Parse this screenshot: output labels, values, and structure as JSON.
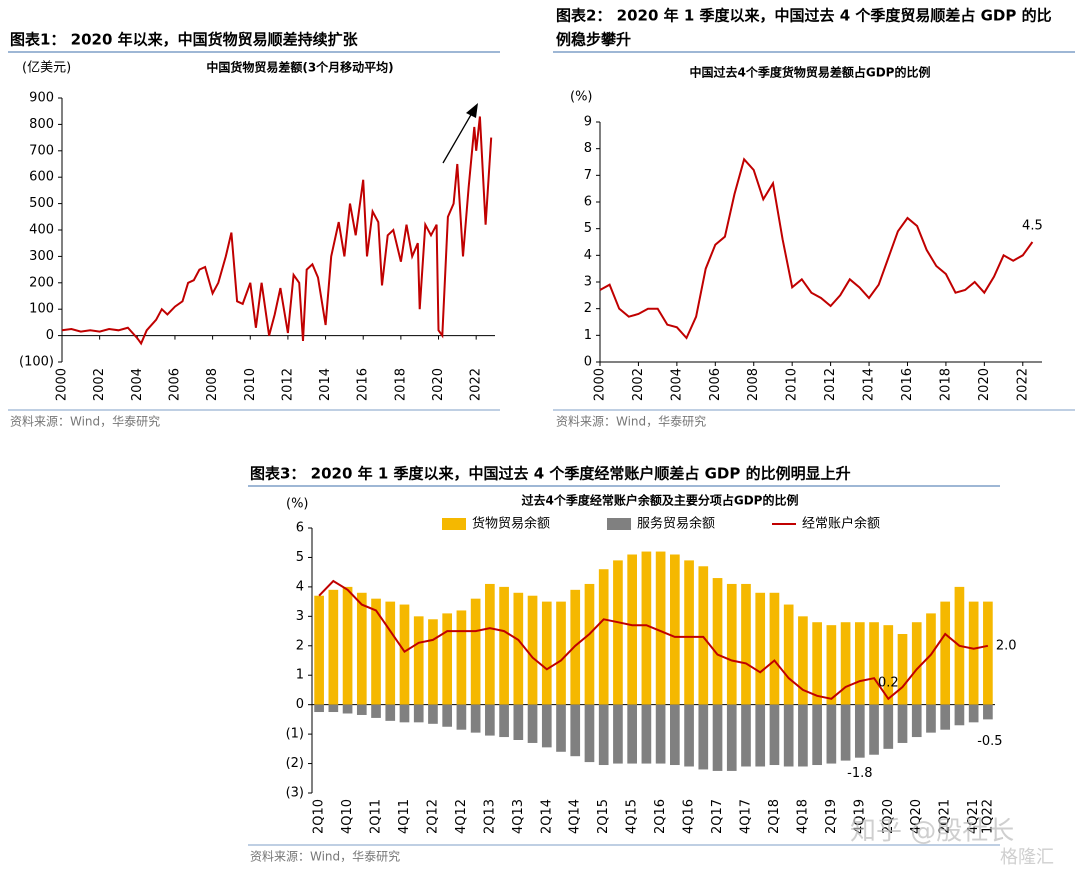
{
  "chart_data": [
    {
      "type": "line",
      "header": [
        "图表1：  2020 年以来，中国货物贸易顺差持续扩张"
      ],
      "title": "中国货物贸易差额(3个月移动平均)",
      "y_label": "(亿美元)",
      "source": "资料来源：Wind，华泰研究",
      "x": [
        2000,
        2000.5,
        2001,
        2001.5,
        2002,
        2002.5,
        2003,
        2003.5,
        2004,
        2004.2,
        2004.5,
        2005,
        2005.3,
        2005.6,
        2006,
        2006.4,
        2006.7,
        2007,
        2007.3,
        2007.6,
        2008,
        2008.3,
        2008.7,
        2009,
        2009.3,
        2009.6,
        2010,
        2010.3,
        2010.6,
        2011,
        2011.3,
        2011.6,
        2012,
        2012.3,
        2012.6,
        2012.8,
        2013,
        2013.3,
        2013.6,
        2014,
        2014.3,
        2014.7,
        2015,
        2015.3,
        2015.6,
        2016,
        2016.2,
        2016.5,
        2016.8,
        2017,
        2017.3,
        2017.6,
        2018,
        2018.3,
        2018.6,
        2018.9,
        2019,
        2019.3,
        2019.6,
        2019.9,
        2020,
        2020.2,
        2020.5,
        2020.8,
        2021,
        2021.3,
        2021.6,
        2021.9,
        2022,
        2022.2,
        2022.5,
        2022.8
      ],
      "series": [
        {
          "name": "中国货物贸易差额",
          "color": "#c00000",
          "values": [
            20,
            25,
            15,
            20,
            15,
            25,
            20,
            30,
            -10,
            -30,
            20,
            60,
            100,
            80,
            110,
            130,
            200,
            210,
            250,
            260,
            160,
            200,
            300,
            390,
            130,
            120,
            200,
            30,
            200,
            0,
            80,
            180,
            10,
            230,
            200,
            -20,
            250,
            270,
            220,
            40,
            300,
            430,
            300,
            500,
            380,
            590,
            300,
            470,
            430,
            190,
            380,
            400,
            280,
            420,
            300,
            350,
            100,
            420,
            380,
            420,
            20,
            0,
            450,
            500,
            650,
            300,
            560,
            790,
            700,
            830,
            420,
            750
          ]
        }
      ],
      "xlim": [
        2000,
        2023
      ],
      "xticks": [
        2000,
        2002,
        2004,
        2006,
        2008,
        2010,
        2012,
        2014,
        2016,
        2018,
        2020,
        2022
      ],
      "ylim": [
        -100,
        900
      ],
      "yticks": [
        {
          "value": -100,
          "label": "(100)"
        },
        0,
        100,
        200,
        300,
        400,
        500,
        600,
        700,
        800,
        900
      ]
    },
    {
      "type": "line",
      "header": [
        "图表2：  2020 年 1 季度以来，中国过去 4 个季度贸易顺差占 GDP 的比",
        "例稳步攀升"
      ],
      "title": "中国过去4个季度货物贸易差额占GDP的比例",
      "y_label": "(%)",
      "source": "资料来源：Wind，华泰研究",
      "x": [
        2000,
        2000.5,
        2001,
        2001.5,
        2002,
        2002.5,
        2003,
        2003.5,
        2004,
        2004.5,
        2005,
        2005.5,
        2006,
        2006.5,
        2007,
        2007.5,
        2008,
        2008.5,
        2009,
        2009.5,
        2010,
        2010.5,
        2011,
        2011.5,
        2012,
        2012.5,
        2013,
        2013.5,
        2014,
        2014.5,
        2015,
        2015.5,
        2016,
        2016.5,
        2017,
        2017.5,
        2018,
        2018.5,
        2019,
        2019.5,
        2020,
        2020.5,
        2021,
        2021.5,
        2022,
        2022.5
      ],
      "series": [
        {
          "name": "货物贸易差额占GDP的比例",
          "color": "#c00000",
          "values": [
            2.7,
            2.9,
            2.0,
            1.7,
            1.8,
            2.0,
            2.0,
            1.4,
            1.3,
            0.9,
            1.7,
            3.5,
            4.4,
            4.7,
            6.3,
            7.6,
            7.2,
            6.1,
            6.7,
            4.6,
            2.8,
            3.1,
            2.6,
            2.4,
            2.1,
            2.5,
            3.1,
            2.8,
            2.4,
            2.9,
            3.9,
            4.9,
            5.4,
            5.1,
            4.2,
            3.6,
            3.3,
            2.6,
            2.7,
            3.0,
            2.6,
            3.2,
            4.0,
            3.8,
            4.0,
            4.5
          ],
          "value_labels": [
            null,
            null,
            null,
            null,
            null,
            null,
            null,
            null,
            null,
            null,
            null,
            null,
            null,
            null,
            null,
            null,
            null,
            null,
            null,
            null,
            null,
            null,
            null,
            null,
            null,
            null,
            null,
            null,
            null,
            null,
            null,
            null,
            null,
            null,
            null,
            null,
            null,
            null,
            null,
            null,
            null,
            null,
            null,
            null,
            null,
            "4.5"
          ]
        }
      ],
      "xlim": [
        2000,
        2023
      ],
      "xticks": [
        2000,
        2002,
        2004,
        2006,
        2008,
        2010,
        2012,
        2014,
        2016,
        2018,
        2020,
        2022
      ],
      "ylim": [
        0,
        9
      ],
      "yticks": [
        0,
        1,
        2,
        3,
        4,
        5,
        6,
        7,
        8,
        9
      ]
    },
    {
      "type": "bar",
      "header": [
        "图表3：  2020 年 1 季度以来，中国过去 4 个季度经常账户顺差占 GDP 的比例明显上升"
      ],
      "title": "过去4个季度经常账户余额及主要分项占GDP的比例",
      "y_label": "(%)",
      "source": "资料来源：Wind，华泰研究",
      "legend": "top",
      "categories": [
        "2Q10",
        null,
        "4Q10",
        null,
        "2Q11",
        null,
        "4Q11",
        null,
        "2Q12",
        null,
        "4Q12",
        null,
        "2Q13",
        null,
        "4Q13",
        null,
        "2Q14",
        null,
        "4Q14",
        null,
        "2Q15",
        null,
        "4Q15",
        null,
        "2Q16",
        null,
        "4Q16",
        null,
        "2Q17",
        null,
        "4Q17",
        null,
        "2Q18",
        null,
        "4Q18",
        null,
        "2Q19",
        null,
        "4Q19",
        null,
        "2Q20",
        null,
        "4Q20",
        null,
        "2Q21",
        null,
        "4Q21",
        "1Q22"
      ],
      "series": [
        {
          "name": "货物贸易余额",
          "color": "#f5b800",
          "values": [
            3.7,
            3.9,
            4.0,
            3.8,
            3.6,
            3.5,
            3.4,
            3.0,
            2.9,
            3.1,
            3.2,
            3.6,
            4.1,
            4.0,
            3.8,
            3.7,
            3.5,
            3.5,
            3.9,
            4.1,
            4.6,
            4.9,
            5.1,
            5.2,
            5.2,
            5.1,
            4.9,
            4.7,
            4.3,
            4.1,
            4.1,
            3.8,
            3.8,
            3.4,
            3.0,
            2.8,
            2.7,
            2.8,
            2.8,
            2.8,
            2.7,
            2.4,
            2.8,
            3.1,
            3.5,
            4.0,
            3.5,
            3.5
          ]
        },
        {
          "name": "服务贸易余额",
          "color": "#808080",
          "values": [
            -0.25,
            -0.25,
            -0.3,
            -0.35,
            -0.45,
            -0.55,
            -0.6,
            -0.6,
            -0.65,
            -0.75,
            -0.85,
            -0.95,
            -1.05,
            -1.1,
            -1.2,
            -1.3,
            -1.45,
            -1.6,
            -1.75,
            -1.95,
            -2.05,
            -2.0,
            -2.0,
            -2.0,
            -2.0,
            -2.05,
            -2.1,
            -2.2,
            -2.25,
            -2.25,
            -2.1,
            -2.1,
            -2.05,
            -2.1,
            -2.1,
            -2.05,
            -2.0,
            -1.9,
            -1.8,
            -1.7,
            -1.5,
            -1.3,
            -1.1,
            -0.95,
            -0.85,
            -0.7,
            -0.6,
            -0.5
          ],
          "value_labels": [
            null,
            null,
            null,
            null,
            null,
            null,
            null,
            null,
            null,
            null,
            null,
            null,
            null,
            null,
            null,
            null,
            null,
            null,
            null,
            null,
            null,
            null,
            null,
            null,
            null,
            null,
            null,
            null,
            null,
            null,
            null,
            null,
            null,
            null,
            null,
            null,
            null,
            null,
            "-1.8",
            null,
            null,
            null,
            null,
            null,
            null,
            null,
            null,
            "-0.5"
          ]
        },
        {
          "name": "经常账户余额",
          "color": "#c00000",
          "type": "line",
          "values": [
            3.7,
            4.2,
            3.9,
            3.4,
            3.2,
            2.5,
            1.8,
            2.1,
            2.2,
            2.5,
            2.5,
            2.5,
            2.6,
            2.5,
            2.2,
            1.6,
            1.2,
            1.5,
            2.0,
            2.4,
            2.9,
            2.8,
            2.7,
            2.7,
            2.5,
            2.3,
            2.3,
            2.3,
            1.7,
            1.5,
            1.4,
            1.1,
            1.5,
            0.9,
            0.5,
            0.3,
            0.2,
            0.6,
            0.8,
            0.9,
            0.2,
            0.6,
            1.2,
            1.7,
            2.4,
            2.0,
            1.9,
            2.0
          ],
          "value_labels": [
            null,
            null,
            null,
            null,
            null,
            null,
            null,
            null,
            null,
            null,
            null,
            null,
            null,
            null,
            null,
            null,
            null,
            null,
            null,
            null,
            null,
            null,
            null,
            null,
            null,
            null,
            null,
            null,
            null,
            null,
            null,
            null,
            null,
            null,
            null,
            null,
            null,
            null,
            null,
            null,
            "0.2",
            null,
            null,
            null,
            null,
            null,
            null,
            "2.0"
          ]
        }
      ],
      "ylim": [
        -3,
        6
      ],
      "yticks": [
        {
          "value": -3,
          "label": "(3)"
        },
        {
          "value": -2,
          "label": "(2)"
        },
        {
          "value": -1,
          "label": "(1)"
        },
        0,
        1,
        2,
        3,
        4,
        5,
        6
      ]
    }
  ],
  "watermark": [
    "知乎 @殷社长",
    "格隆汇"
  ]
}
